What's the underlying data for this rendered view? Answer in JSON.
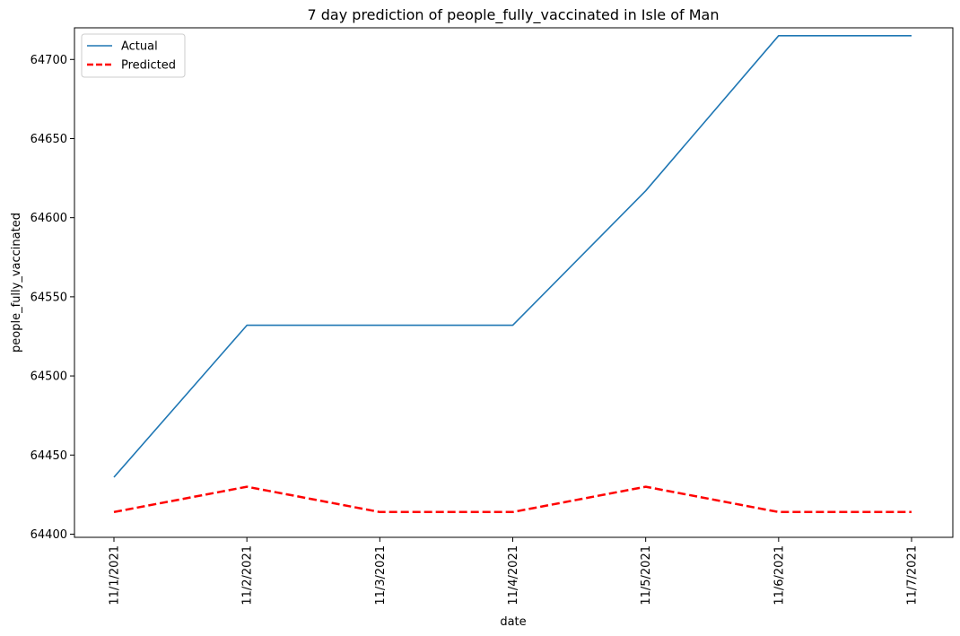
{
  "chart_data": {
    "type": "line",
    "title": "7 day prediction of people_fully_vaccinated in Isle of Man",
    "xlabel": "date",
    "ylabel": "people_fully_vaccinated",
    "categories": [
      "11/1/2021",
      "11/2/2021",
      "11/3/2021",
      "11/4/2021",
      "11/5/2021",
      "11/6/2021",
      "11/7/2021"
    ],
    "ylim": [
      64398,
      64720
    ],
    "yticks": [
      64400,
      64450,
      64500,
      64550,
      64600,
      64650,
      64700
    ],
    "legend_position": "top-left",
    "grid": false,
    "series": [
      {
        "name": "Actual",
        "color": "#1f77b4",
        "style": "solid",
        "values": [
          64436,
          64532,
          64532,
          64532,
          64617,
          64715,
          64715
        ]
      },
      {
        "name": "Predicted",
        "color": "#ff0000",
        "style": "dashed",
        "values": [
          64414,
          64430,
          64414,
          64414,
          64430,
          64414,
          64414
        ]
      }
    ]
  }
}
